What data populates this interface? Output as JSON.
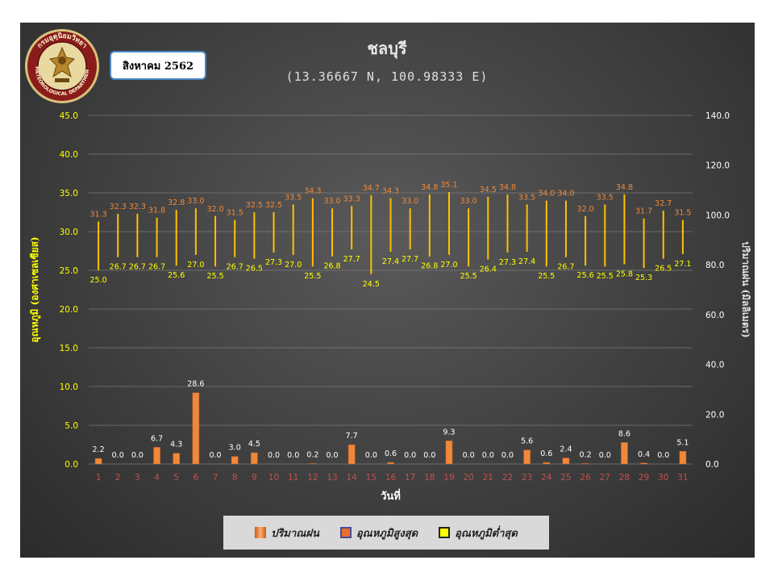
{
  "title": "ชลบุรี",
  "subtitle": "(13.36667 N, 100.98333 E)",
  "month_label": "สิงหาคม 2562",
  "logo": {
    "icon": "meteorological-department-seal-icon",
    "text_top": "กรมอุตุนิยมวิทยา",
    "text_bottom": "METEOROLOGICAL DEPARTMENT"
  },
  "legend": {
    "rain": "ปริมาณฝน",
    "tmax": "อุณหภูมิสูงสุด",
    "tmin": "อุณหภูมิต่ำสุด"
  },
  "colors": {
    "rain_bar": "#f0883a",
    "range_line": "#ffc000",
    "max_label": "#f0883a",
    "min_label": "#ffff00",
    "left_axis": "#ffff00",
    "right_axis": "#ffffff",
    "x_ticks": "#c0504d"
  },
  "chart_data": {
    "type": "bar",
    "x": [
      1,
      2,
      3,
      4,
      5,
      6,
      7,
      8,
      9,
      10,
      11,
      12,
      13,
      14,
      15,
      16,
      17,
      18,
      19,
      20,
      21,
      22,
      23,
      24,
      25,
      26,
      27,
      28,
      29,
      30,
      31
    ],
    "xlabel": "วันที่",
    "ylabel_left": "อุณหภูมิ (องศาเซลเซียส)",
    "ylabel_right": "ปริมาณฝน (มิลลิเมตร)",
    "ylim_left": [
      0,
      45
    ],
    "yticks_left": [
      "0.0",
      "5.0",
      "10.0",
      "15.0",
      "20.0",
      "25.0",
      "30.0",
      "35.0",
      "40.0",
      "45.0"
    ],
    "ylim_right": [
      0,
      140
    ],
    "yticks_right": [
      "0.0",
      "20.0",
      "40.0",
      "60.0",
      "80.0",
      "100.0",
      "120.0",
      "140.0"
    ],
    "grid": true,
    "legend_position": "bottom",
    "series": [
      {
        "name": "ปริมาณฝน",
        "axis": "right",
        "values": [
          2.2,
          0.0,
          0.0,
          6.7,
          4.3,
          28.6,
          0.0,
          3.0,
          4.5,
          0.0,
          0.0,
          0.2,
          0.0,
          7.7,
          0.0,
          0.6,
          0.0,
          0.0,
          9.3,
          0.0,
          0.0,
          0.0,
          5.6,
          0.6,
          2.4,
          0.2,
          0.0,
          8.6,
          0.4,
          0.0,
          5.1
        ]
      },
      {
        "name": "อุณหภูมิสูงสุด",
        "axis": "left",
        "values": [
          31.3,
          32.3,
          32.3,
          31.8,
          32.8,
          33.0,
          32.0,
          31.5,
          32.5,
          32.5,
          33.5,
          34.3,
          33.0,
          33.3,
          34.7,
          34.3,
          33.0,
          34.8,
          35.1,
          33.0,
          34.5,
          34.8,
          33.5,
          34.0,
          34.0,
          32.0,
          33.5,
          34.8,
          31.7,
          32.7,
          31.5
        ]
      },
      {
        "name": "อุณหภูมิต่ำสุด",
        "axis": "left",
        "values": [
          25.0,
          26.7,
          26.7,
          26.7,
          25.6,
          27.0,
          25.5,
          26.7,
          26.5,
          27.3,
          27.0,
          25.5,
          26.8,
          27.7,
          24.5,
          27.4,
          27.7,
          26.8,
          27.0,
          25.5,
          26.4,
          27.3,
          27.4,
          25.5,
          26.7,
          25.6,
          25.5,
          25.8,
          25.3,
          26.5,
          27.1
        ]
      }
    ]
  }
}
